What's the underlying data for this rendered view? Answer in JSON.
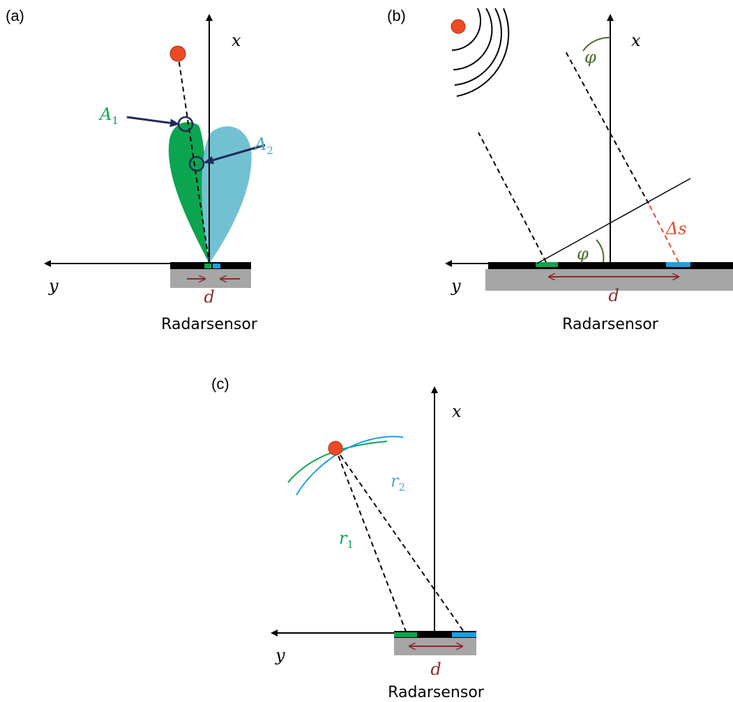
{
  "panels": [
    {
      "label": "(a)",
      "x_axis": "x",
      "y_axis": "y",
      "distance": "d",
      "sensor": "Radarsensor",
      "a1": {
        "base": "A",
        "sub": "1"
      },
      "a2": {
        "base": "A",
        "sub": "2"
      }
    },
    {
      "label": "(b)",
      "x_axis": "x",
      "y_axis": "y",
      "distance": "d",
      "sensor": "Radarsensor",
      "angle": "φ",
      "path_difference": "Δs"
    },
    {
      "label": "(c)",
      "x_axis": "x",
      "y_axis": "y",
      "distance": "d",
      "sensor": "Radarsensor",
      "r1": {
        "base": "r",
        "sub": "1"
      },
      "r2": {
        "base": "r",
        "sub": "2"
      }
    }
  ]
}
